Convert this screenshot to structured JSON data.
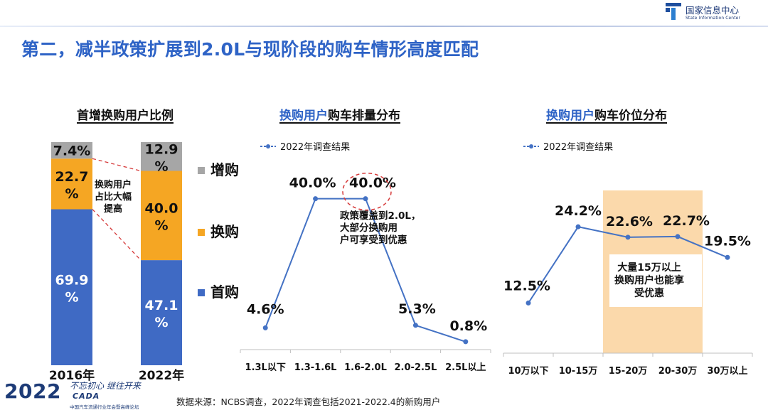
{
  "header": {
    "logo_cn": "国家信息中心",
    "logo_en": "State Information Center",
    "title": "第二，减半政策扩展到2.0L与现阶段的购车情形高度匹配"
  },
  "footer": {
    "year": "2022",
    "slogan": "不忘初心 继往开来",
    "brand": "CADA",
    "sub": "中国汽车流通行业年会暨高峰论坛",
    "source": "数据来源：NCBS调查，2022年调查包括2021-2022.4的新购用户"
  },
  "colors": {
    "first": "#3f6ac4",
    "replace": "#f5a623",
    "add": "#a6a6a6",
    "line": "#4472c4",
    "band": "#fbd9ab",
    "accent": "#2e63c6",
    "annot": "#d63a3a"
  },
  "chart_data": [
    {
      "type": "bar",
      "stacked": true,
      "title": "首增换购用户比例",
      "categories": [
        "2016年",
        "2022年"
      ],
      "series": [
        {
          "name": "首购",
          "values": [
            69.9,
            47.1
          ],
          "labels": [
            "69.9 %",
            "47.1 %"
          ]
        },
        {
          "name": "换购",
          "values": [
            22.7,
            40.0
          ],
          "labels": [
            "22.7 %",
            "40.0 %"
          ]
        },
        {
          "name": "增购",
          "values": [
            7.4,
            12.9
          ],
          "labels": [
            "7.4%",
            "12.9 %"
          ]
        }
      ],
      "legend_position": "right",
      "annotation": "换购用户占比大幅提高"
    },
    {
      "type": "line",
      "title_plain": "",
      "title_highlight": "换购用户",
      "title_rest": "购车排量分布",
      "legend": "2022年调查结果",
      "categories": [
        "1.3L以下",
        "1.3-1.6L",
        "1.6-2.0L",
        "2.0-2.5L",
        "2.5L以上"
      ],
      "series": [
        {
          "name": "2022年调查结果",
          "values": [
            4.6,
            40.0,
            40.0,
            5.3,
            0.8
          ]
        }
      ],
      "value_labels": [
        "4.6%",
        "40.0%",
        "40.0%",
        "5.3%",
        "0.8%"
      ],
      "ylim": [
        0,
        45
      ],
      "grid": false,
      "highlight_index": 2,
      "annotation": "政策覆盖到2.0L，大部分换购用户可享受到优惠"
    },
    {
      "type": "line",
      "title_plain": "",
      "title_highlight": "换购用户",
      "title_rest": "购车价位分布",
      "legend": "2022年调查结果",
      "categories": [
        "10万以下",
        "10-15万",
        "15-20万",
        "20-30万",
        "30万以上"
      ],
      "series": [
        {
          "name": "2022年调查结果",
          "values": [
            12.5,
            24.2,
            22.6,
            22.7,
            19.5
          ]
        }
      ],
      "value_labels": [
        "12.5%",
        "24.2%",
        "22.6%",
        "22.7%",
        "19.5%"
      ],
      "ylim": [
        0,
        30
      ],
      "grid": false,
      "band_categories": [
        2,
        4
      ],
      "annotation": "大量15万以上换购用户也能享受优惠"
    }
  ]
}
